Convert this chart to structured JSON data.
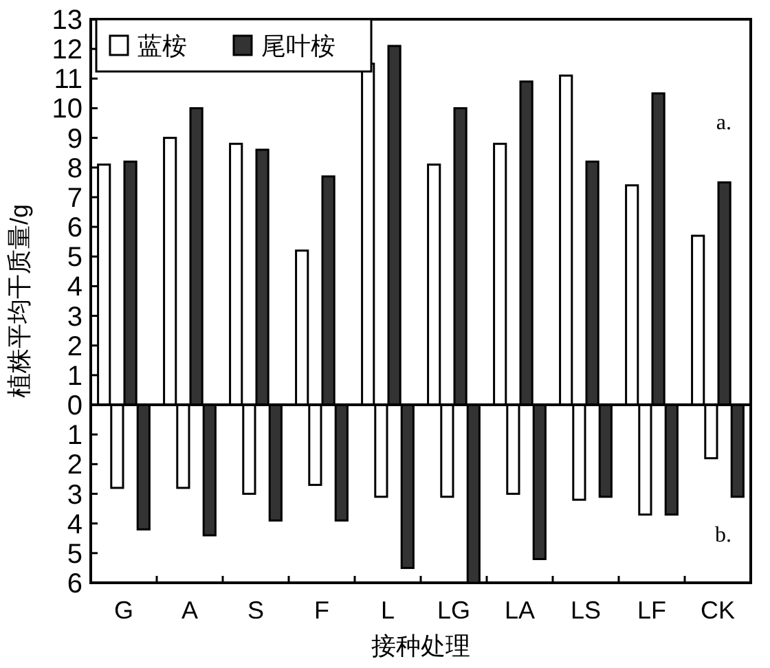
{
  "chart_data": {
    "type": "bar",
    "xlabel": "接种处理",
    "ylabel": "植株平均干质量/g",
    "categories": [
      "G",
      "A",
      "S",
      "F",
      "L",
      "LG",
      "LA",
      "LS",
      "LF",
      "CK"
    ],
    "series": [
      {
        "name": "蓝桉",
        "color": "#ffffff",
        "values": [
          8.1,
          9.0,
          8.8,
          5.2,
          11.5,
          8.1,
          8.8,
          11.1,
          7.4,
          5.7
        ]
      },
      {
        "name": "尾叶桉",
        "color": "#333333",
        "values": [
          8.2,
          10.0,
          8.6,
          7.7,
          12.1,
          10.0,
          10.9,
          8.2,
          10.5,
          7.5
        ]
      },
      {
        "color": "#ffffff",
        "values": [
          -2.8,
          -2.8,
          -3.0,
          -2.7,
          -3.1,
          -3.1,
          -3.0,
          -3.2,
          -3.7,
          -1.8
        ]
      },
      {
        "color": "#333333",
        "values": [
          -4.2,
          -4.4,
          -3.9,
          -3.9,
          -5.5,
          -6.0,
          -5.2,
          -3.1,
          -3.7,
          -3.1
        ]
      }
    ],
    "ylim": [
      -6,
      13
    ],
    "yticks": [
      {
        "value": -6,
        "label": "6"
      },
      {
        "value": -5,
        "label": "5"
      },
      {
        "value": -4,
        "label": "4"
      },
      {
        "value": -3,
        "label": "3"
      },
      {
        "value": -2,
        "label": "2"
      },
      {
        "value": -1,
        "label": "1"
      },
      0,
      1,
      2,
      3,
      4,
      5,
      6,
      7,
      8,
      9,
      10,
      11,
      12,
      13
    ],
    "annotations": [
      "a.",
      "b."
    ],
    "ref_lines": [
      {
        "axis": "y",
        "value": 0
      }
    ],
    "legend": "top left",
    "grid": false
  }
}
